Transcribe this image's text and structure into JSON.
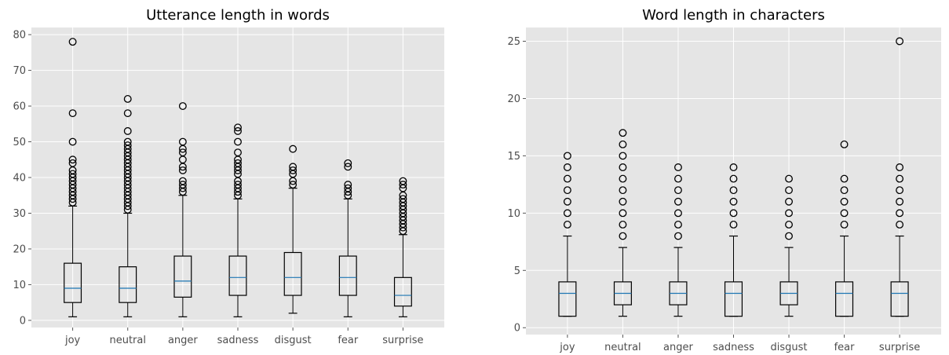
{
  "chart_data": [
    {
      "type": "boxplot",
      "title": "Utterance length in words",
      "categories": [
        "joy",
        "neutral",
        "anger",
        "sadness",
        "disgust",
        "fear",
        "surprise"
      ],
      "ylim": [
        -2,
        82
      ],
      "yticks": [
        0,
        10,
        20,
        30,
        40,
        50,
        60,
        70,
        80
      ],
      "grid": true,
      "boxes": [
        {
          "whislo": 1,
          "q1": 5,
          "med": 9,
          "q3": 16,
          "whishi": 32,
          "fliers": [
            33,
            34,
            35,
            36,
            37,
            38,
            39,
            40,
            41,
            42,
            44,
            45,
            50,
            58,
            78
          ]
        },
        {
          "whislo": 1,
          "q1": 5,
          "med": 9,
          "q3": 15,
          "whishi": 30,
          "fliers": [
            31,
            32,
            33,
            34,
            35,
            36,
            37,
            38,
            39,
            40,
            41,
            42,
            43,
            44,
            45,
            46,
            47,
            48,
            49,
            50,
            53,
            58,
            62
          ]
        },
        {
          "whislo": 1,
          "q1": 6.5,
          "med": 11,
          "q3": 18,
          "whishi": 35,
          "fliers": [
            36,
            37,
            38,
            39,
            42,
            43,
            45,
            47,
            48,
            50,
            60
          ]
        },
        {
          "whislo": 1,
          "q1": 7,
          "med": 12,
          "q3": 18,
          "whishi": 34,
          "fliers": [
            35,
            36,
            37,
            38,
            39,
            41,
            42,
            43,
            44,
            45,
            47,
            50,
            53,
            54
          ]
        },
        {
          "whislo": 2,
          "q1": 7,
          "med": 12,
          "q3": 19,
          "whishi": 37,
          "fliers": [
            38,
            39,
            41,
            42,
            43,
            48
          ]
        },
        {
          "whislo": 1,
          "q1": 7,
          "med": 12,
          "q3": 18,
          "whishi": 34,
          "fliers": [
            35,
            36,
            37,
            38,
            43,
            44
          ]
        },
        {
          "whislo": 1,
          "q1": 4,
          "med": 7,
          "q3": 12,
          "whishi": 24,
          "fliers": [
            25,
            26,
            27,
            28,
            29,
            30,
            31,
            32,
            33,
            34,
            35,
            37,
            38,
            39
          ]
        }
      ]
    },
    {
      "type": "boxplot",
      "title": "Word length in characters",
      "categories": [
        "joy",
        "neutral",
        "anger",
        "sadness",
        "disgust",
        "fear",
        "surprise"
      ],
      "ylim": [
        -0.6,
        26.2
      ],
      "yticks": [
        0,
        5,
        10,
        15,
        20,
        25
      ],
      "grid": true,
      "boxes": [
        {
          "whislo": 1,
          "q1": 1,
          "med": 3,
          "q3": 4,
          "whishi": 8,
          "fliers": [
            9,
            10,
            11,
            12,
            13,
            14,
            15
          ]
        },
        {
          "whislo": 1,
          "q1": 2,
          "med": 3,
          "q3": 4,
          "whishi": 7,
          "fliers": [
            8,
            9,
            10,
            11,
            12,
            13,
            14,
            15,
            16,
            17
          ]
        },
        {
          "whislo": 1,
          "q1": 2,
          "med": 3,
          "q3": 4,
          "whishi": 7,
          "fliers": [
            8,
            9,
            10,
            11,
            12,
            13,
            14
          ]
        },
        {
          "whislo": 1,
          "q1": 1,
          "med": 3,
          "q3": 4,
          "whishi": 8,
          "fliers": [
            9,
            10,
            11,
            12,
            13,
            14
          ]
        },
        {
          "whislo": 1,
          "q1": 2,
          "med": 3,
          "q3": 4,
          "whishi": 7,
          "fliers": [
            8,
            9,
            10,
            11,
            12,
            13
          ]
        },
        {
          "whislo": 1,
          "q1": 1,
          "med": 3,
          "q3": 4,
          "whishi": 8,
          "fliers": [
            9,
            10,
            11,
            12,
            13,
            16
          ]
        },
        {
          "whislo": 1,
          "q1": 1,
          "med": 3,
          "q3": 4,
          "whishi": 8,
          "fliers": [
            9,
            10,
            11,
            12,
            13,
            14,
            25
          ]
        }
      ]
    }
  ],
  "colors": {
    "panel_bg": "#e5e5e5",
    "grid": "#ffffff",
    "box": "#000000",
    "median": "#1f77b4",
    "tick_text": "#4d4d4d"
  }
}
